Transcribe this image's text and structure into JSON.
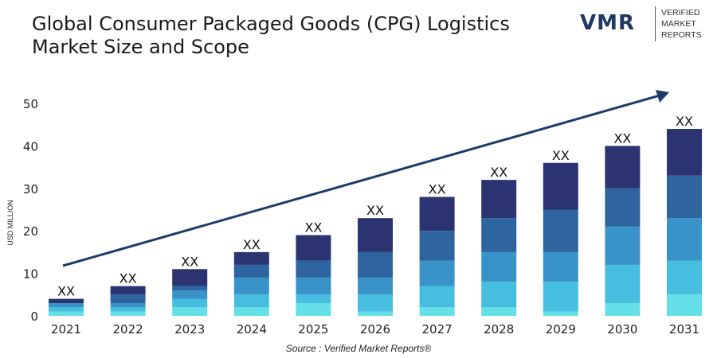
{
  "title_line1": "Global Consumer Packaged Goods (CPG) Logistics",
  "title_line2": "Market Size and Scope",
  "logo": {
    "mark_text": "VMR",
    "line1": "VERIFIED",
    "line2": "MARKET",
    "line3": "REPORTS"
  },
  "source": "Source :  Verified Market Reports®",
  "colors": {
    "segments": [
      "#66e0e8",
      "#45bedf",
      "#3a93c8",
      "#2e64a0",
      "#2b3470"
    ],
    "arrow": "#1d3b68"
  },
  "chart_data": {
    "type": "bar",
    "stacked": true,
    "categories": [
      "2021",
      "2022",
      "2023",
      "2024",
      "2025",
      "2026",
      "2027",
      "2028",
      "2029",
      "2030",
      "2031"
    ],
    "totals": [
      4,
      7,
      11,
      15,
      19,
      23,
      28,
      32,
      36,
      40,
      44
    ],
    "series": [
      {
        "values": [
          1,
          1,
          2,
          2,
          3,
          1,
          2,
          2,
          1,
          3,
          5
        ]
      },
      {
        "values": [
          1,
          1,
          2,
          3,
          2,
          4,
          5,
          6,
          7,
          9,
          8
        ]
      },
      {
        "values": [
          1,
          1,
          2,
          4,
          4,
          4,
          6,
          7,
          7,
          9,
          10
        ]
      },
      {
        "values": [
          0,
          2,
          1,
          3,
          4,
          6,
          7,
          8,
          10,
          9,
          10
        ]
      },
      {
        "values": [
          1,
          2,
          4,
          3,
          6,
          8,
          8,
          9,
          11,
          10,
          11
        ]
      }
    ],
    "data_labels": [
      "XX",
      "XX",
      "XX",
      "XX",
      "XX",
      "XX",
      "XX",
      "XX",
      "XX",
      "XX",
      "XX"
    ],
    "ylabel": "USD MILLION",
    "xlabel": "",
    "ylim": [
      0,
      50
    ],
    "yticks": [
      0,
      10,
      20,
      30,
      40,
      50
    ],
    "grid": false,
    "legend": "none",
    "trend_arrow": true
  }
}
